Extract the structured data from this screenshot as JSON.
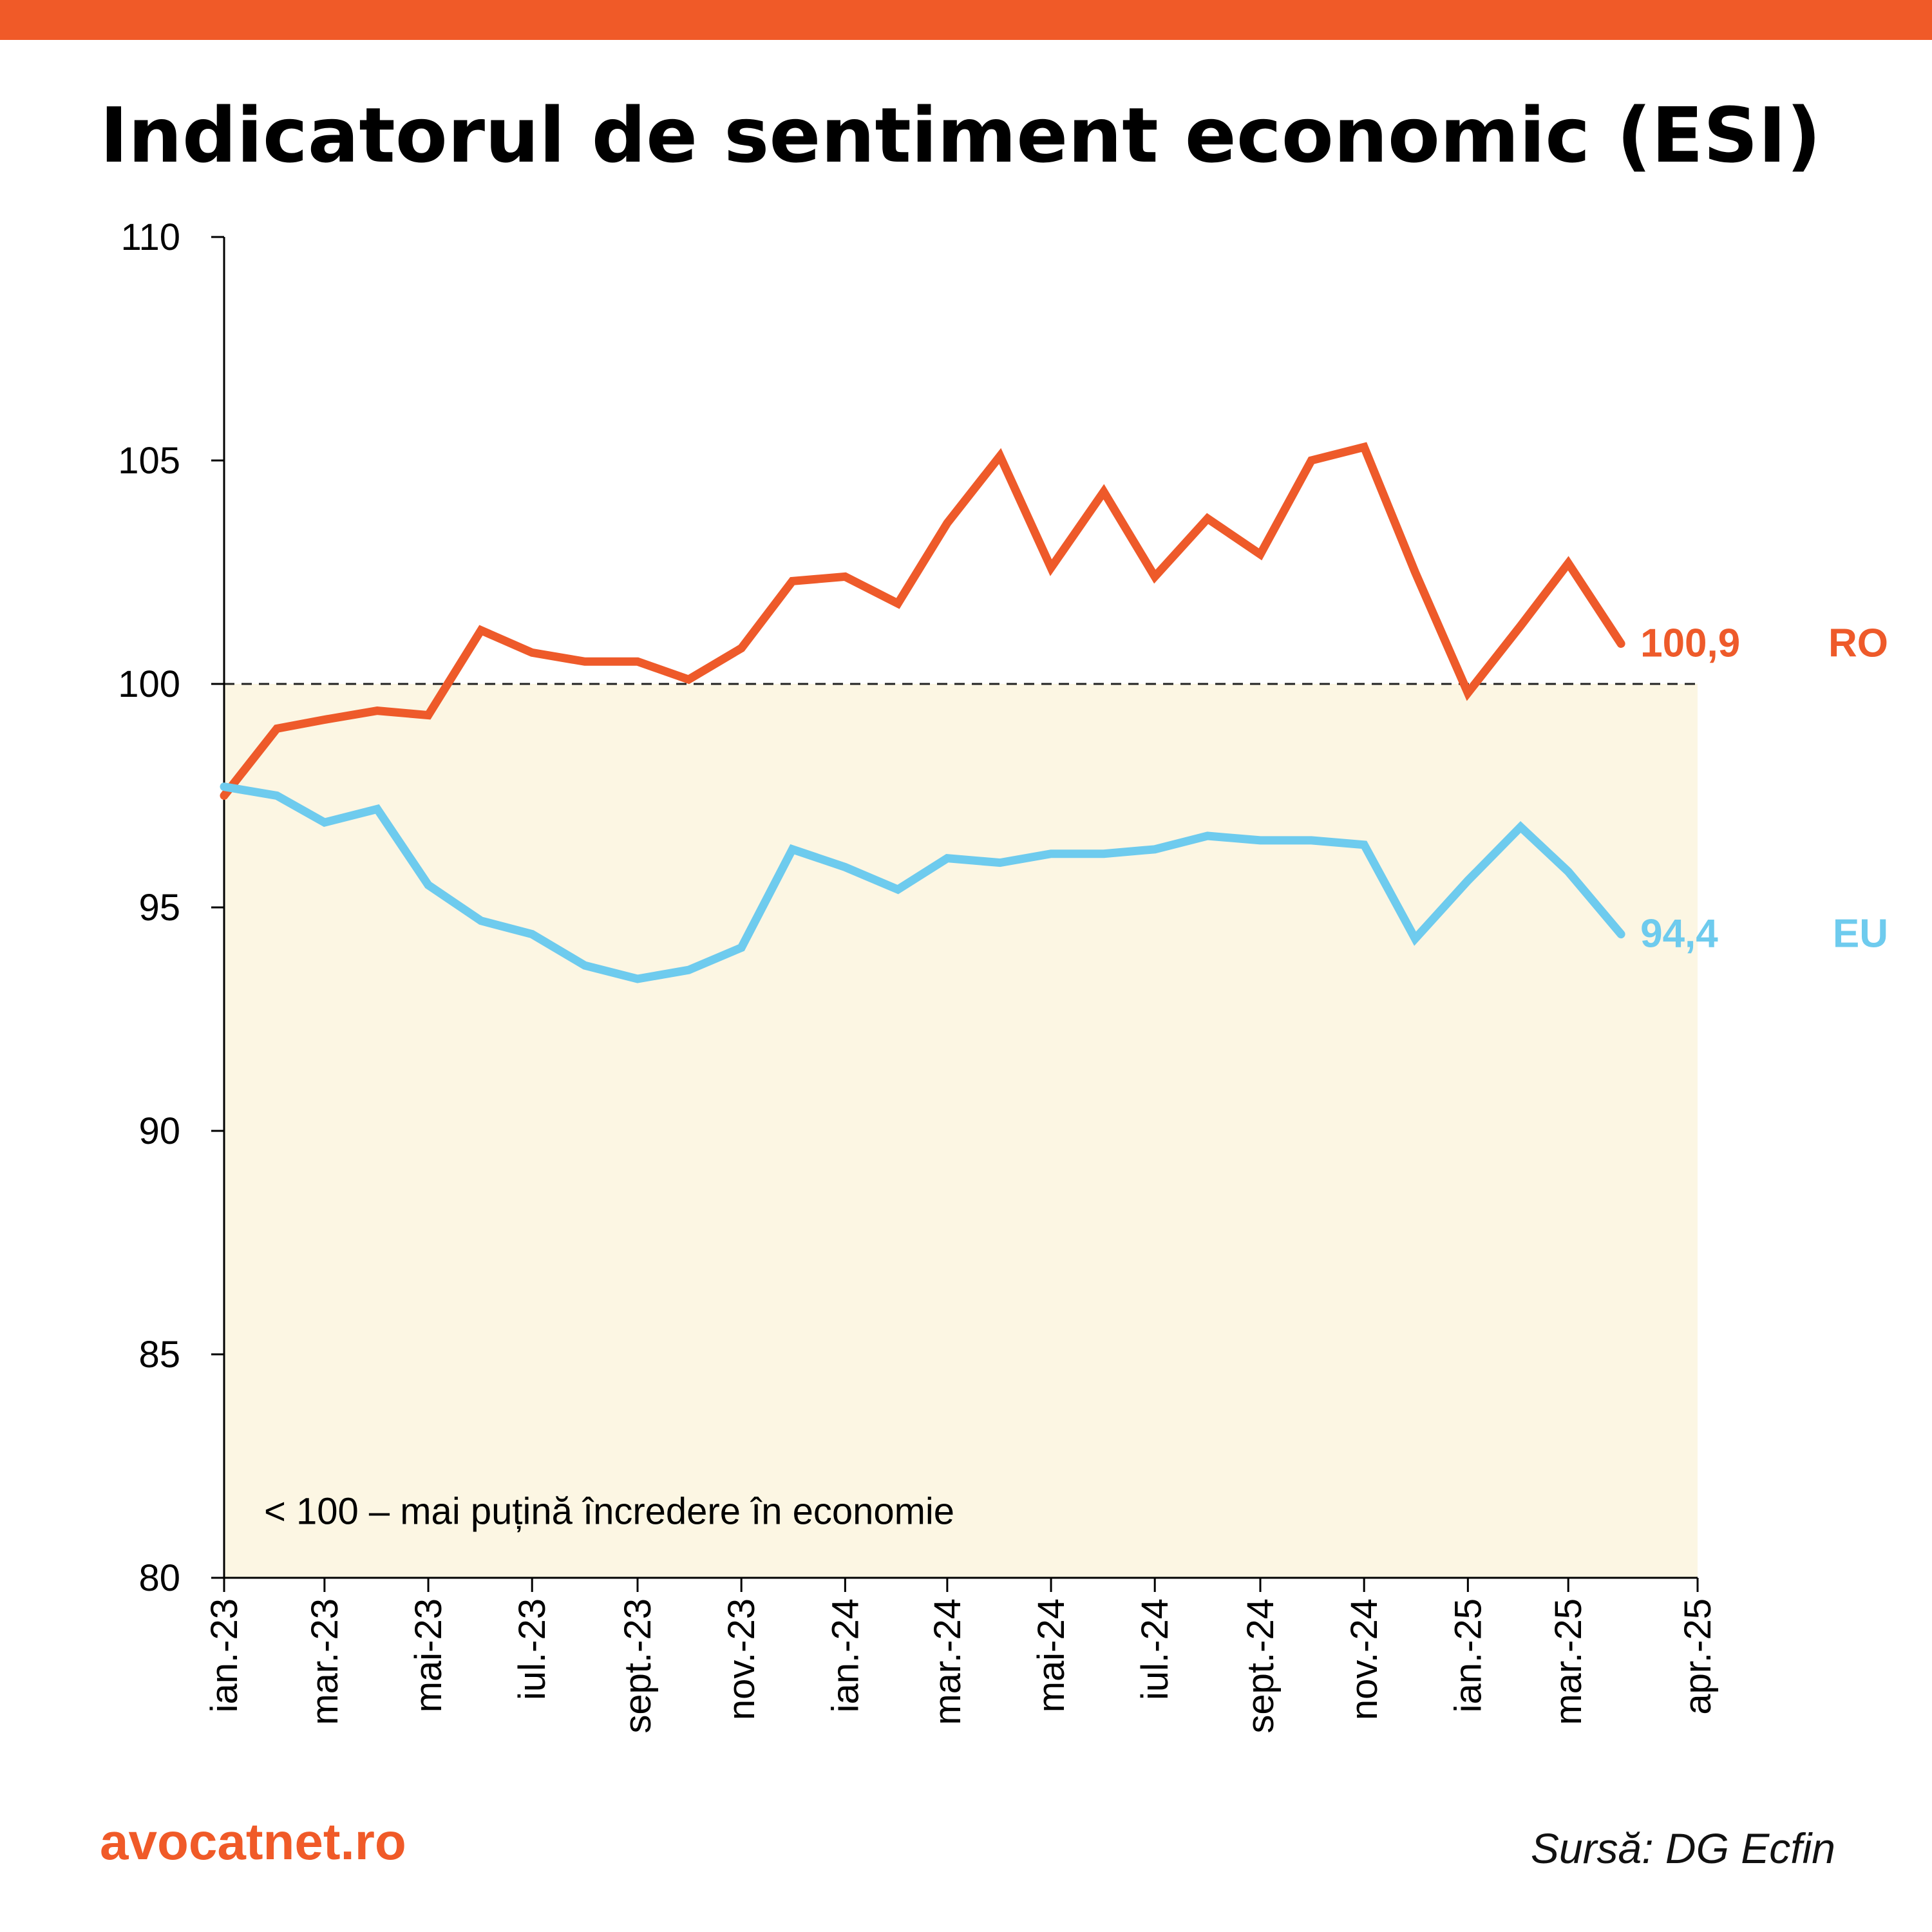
{
  "header": {
    "title": "Indicatorul de sentiment economic (ESI)"
  },
  "colors": {
    "accent": "#f05a28",
    "ro_line": "#ee5a2a",
    "eu_line": "#6ecbee",
    "zone_fill": "#fcf6e3",
    "axis": "#000000"
  },
  "chart_data": {
    "type": "line",
    "title": "Indicatorul de sentiment economic (ESI)",
    "xlabel": "",
    "ylabel": "",
    "ylim": [
      80,
      110
    ],
    "yticks": [
      80,
      85,
      90,
      95,
      100,
      105,
      110
    ],
    "x_tick_labels": [
      "ian.-23",
      "mar.-23",
      "mai-23",
      "iul.-23",
      "sept.-23",
      "nov.-23",
      "ian.-24",
      "mar.-24",
      "mai-24",
      "iul.-24",
      "sept.-24",
      "nov.-24",
      "ian.-25",
      "mar.-25",
      "apr.-25"
    ],
    "months": [
      "2023-01",
      "2023-02",
      "2023-03",
      "2023-04",
      "2023-05",
      "2023-06",
      "2023-07",
      "2023-08",
      "2023-09",
      "2023-10",
      "2023-11",
      "2023-12",
      "2024-01",
      "2024-02",
      "2024-03",
      "2024-04",
      "2024-05",
      "2024-06",
      "2024-07",
      "2024-08",
      "2024-09",
      "2024-10",
      "2024-11",
      "2024-12",
      "2025-01",
      "2025-02",
      "2025-03",
      "2025-04"
    ],
    "series": [
      {
        "name": "RO",
        "values": [
          97.5,
          99.0,
          99.2,
          99.4,
          99.3,
          101.2,
          100.7,
          100.5,
          100.5,
          100.1,
          100.8,
          102.3,
          102.4,
          101.8,
          103.6,
          105.1,
          102.6,
          104.3,
          102.4,
          103.7,
          102.9,
          105.0,
          105.3,
          102.5,
          99.8,
          101.3,
          102.7,
          100.9
        ],
        "end_label": "100,9"
      },
      {
        "name": "EU",
        "values": [
          97.7,
          97.5,
          96.9,
          97.2,
          95.5,
          94.7,
          94.4,
          93.7,
          93.4,
          93.6,
          94.1,
          96.3,
          95.9,
          95.4,
          96.1,
          96.0,
          96.2,
          96.2,
          96.3,
          96.6,
          96.5,
          96.5,
          96.4,
          94.3,
          95.6,
          96.8,
          95.8,
          94.4
        ],
        "end_label": "94,4"
      }
    ],
    "reference_line": 100,
    "shaded_region": [
      80,
      100
    ],
    "annotation": "< 100 – mai puțină încredere în economie",
    "grid": false,
    "legend": "right"
  },
  "footer": {
    "brand": "avocatnet.ro",
    "source": "Sursă: DG Ecfin"
  }
}
